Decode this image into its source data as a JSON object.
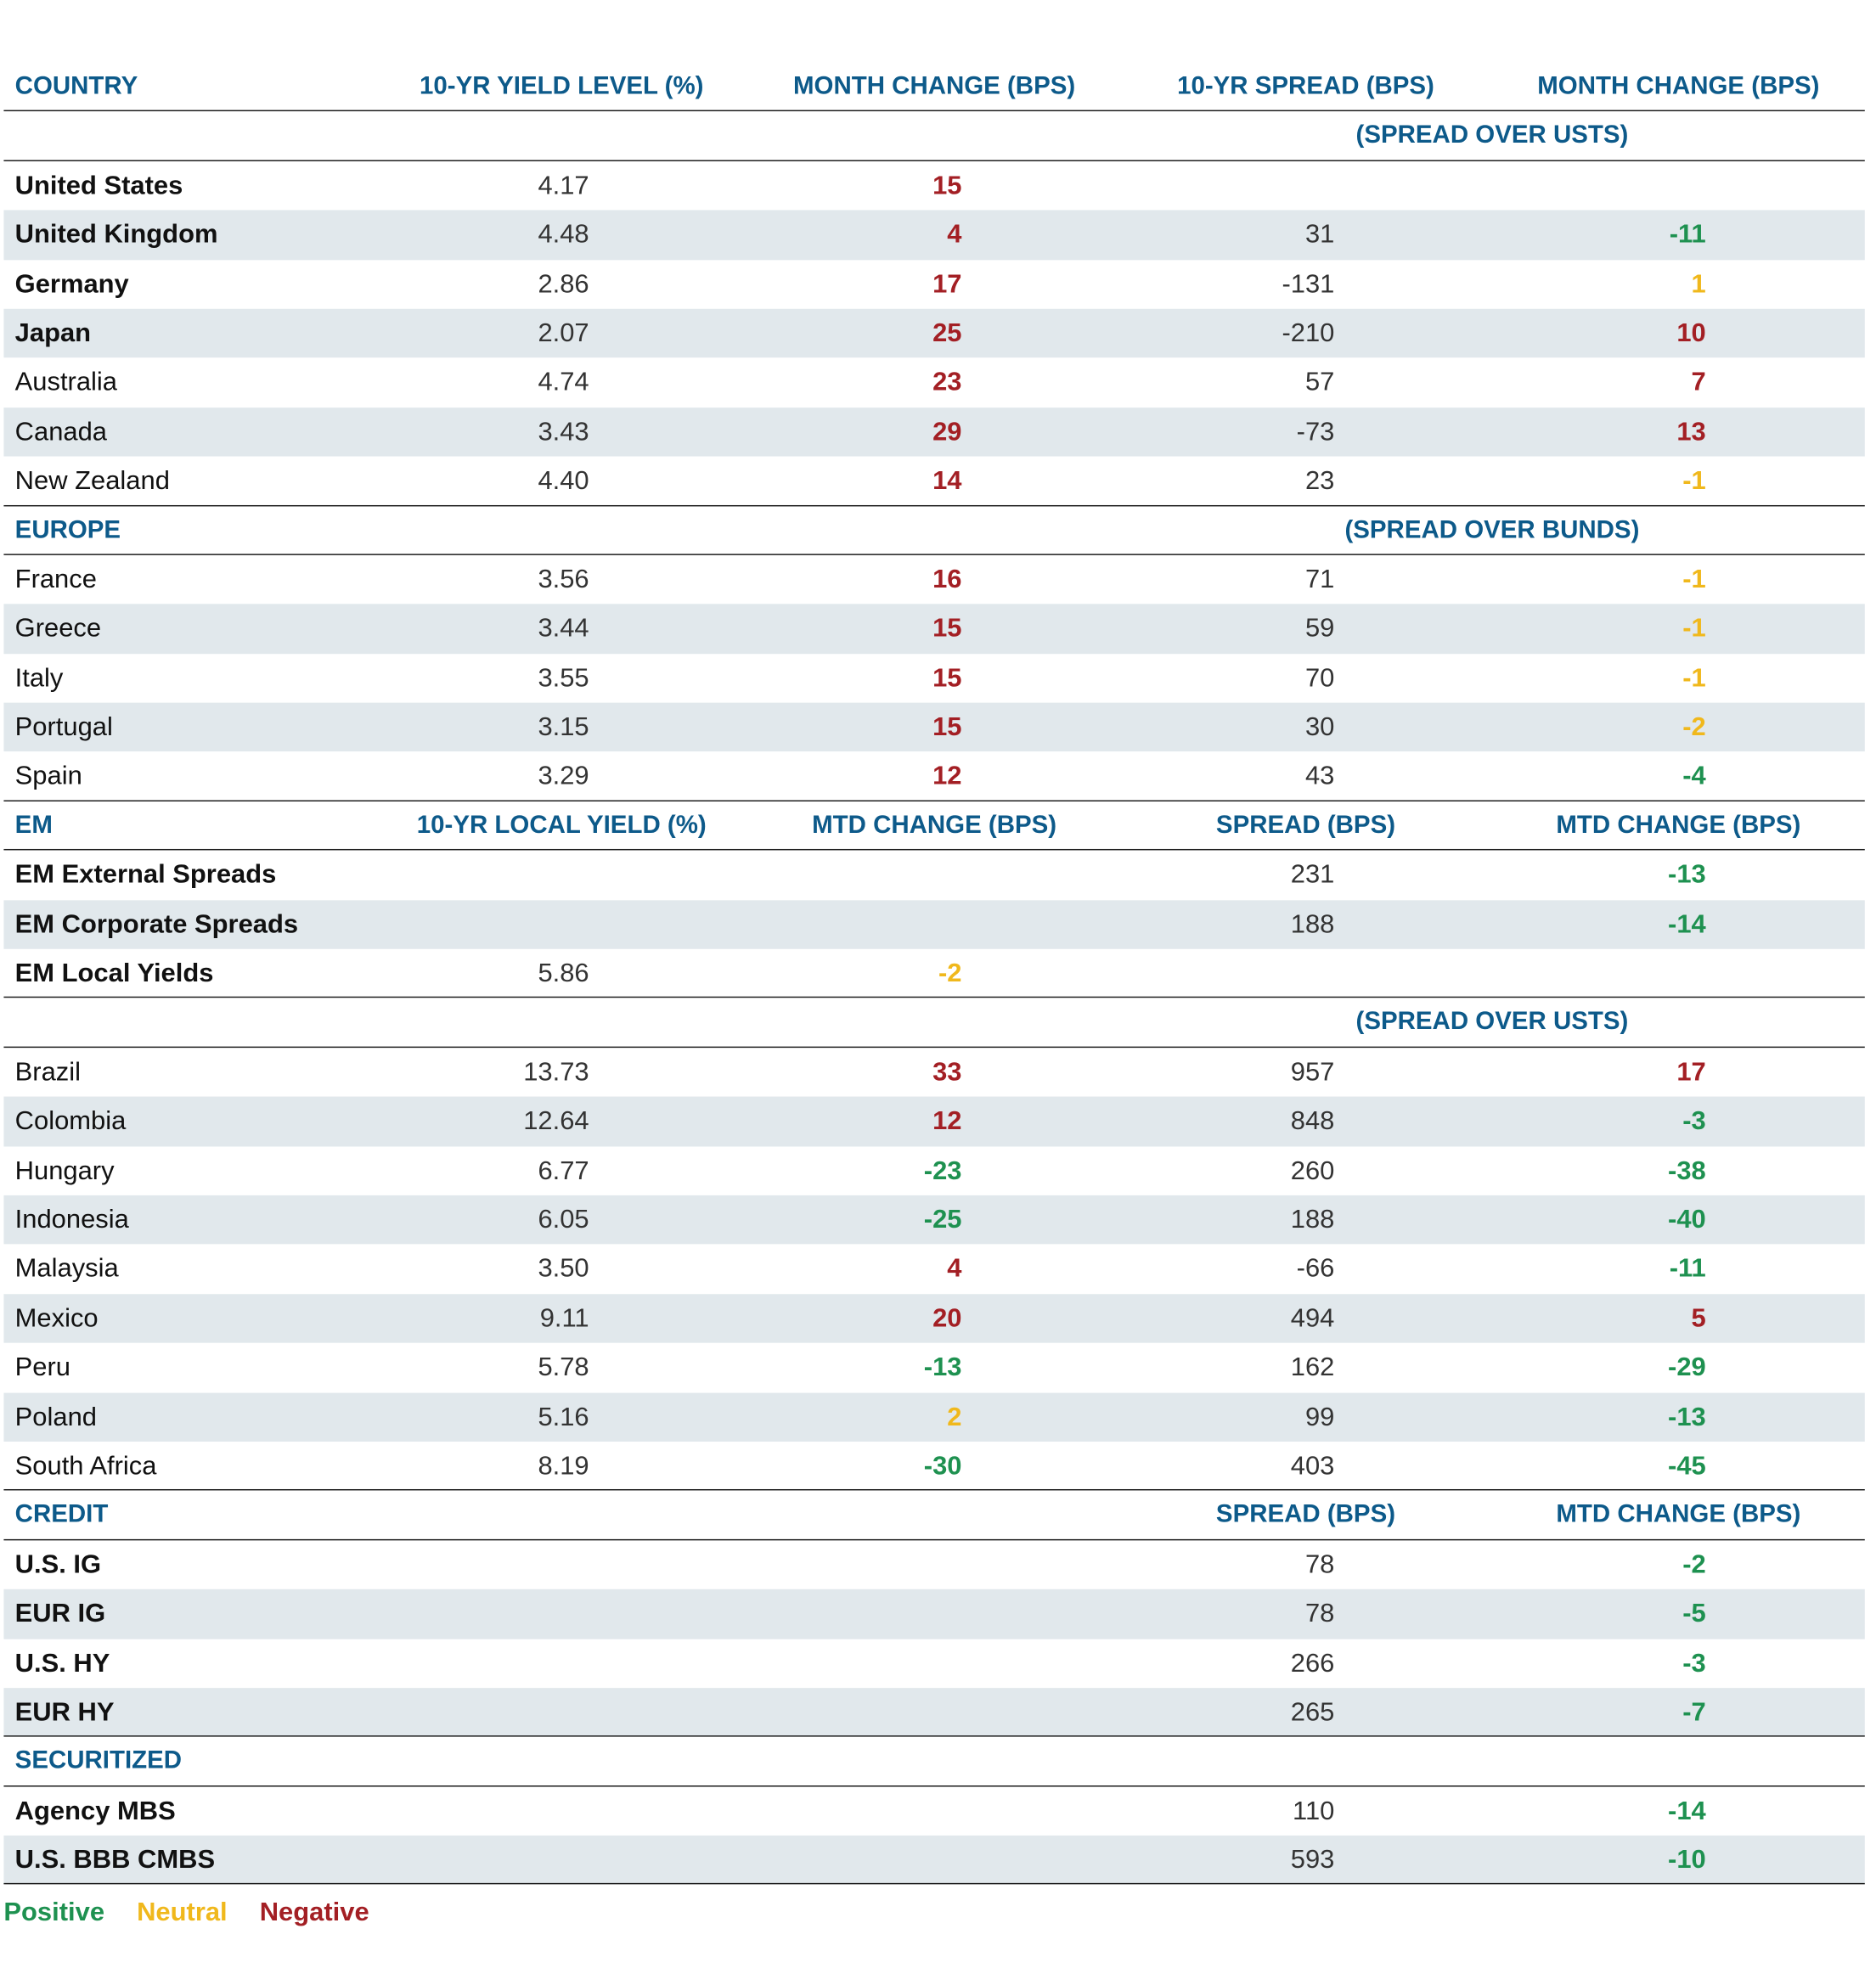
{
  "colors": {
    "header": "#0d5a8a",
    "positive": "#1e9150",
    "neutral": "#f0b81c",
    "negative": "#a31f24",
    "row_shade": "#e1e8ec"
  },
  "blocks": [
    {
      "type": "header",
      "cols": [
        "COUNTRY",
        "10-YR YIELD LEVEL (%)",
        "MONTH CHANGE (BPS)",
        "10-YR SPREAD (BPS)",
        "MONTH CHANGE (BPS)"
      ]
    },
    {
      "type": "subheader",
      "label": "",
      "spread_note": "(SPREAD OVER USTS)"
    },
    {
      "type": "rows",
      "rows": [
        {
          "name": "United States",
          "bold": true,
          "yield": "4.17",
          "yield_chg": {
            "v": "15",
            "s": "negative"
          },
          "spread": "",
          "spread_chg": null
        },
        {
          "name": "United Kingdom",
          "bold": true,
          "yield": "4.48",
          "yield_chg": {
            "v": "4",
            "s": "negative"
          },
          "spread": "31",
          "spread_chg": {
            "v": "-11",
            "s": "positive"
          }
        },
        {
          "name": "Germany",
          "bold": true,
          "yield": "2.86",
          "yield_chg": {
            "v": "17",
            "s": "negative"
          },
          "spread": "-131",
          "spread_chg": {
            "v": "1",
            "s": "neutral"
          }
        },
        {
          "name": "Japan",
          "bold": true,
          "yield": "2.07",
          "yield_chg": {
            "v": "25",
            "s": "negative"
          },
          "spread": "-210",
          "spread_chg": {
            "v": "10",
            "s": "negative"
          }
        },
        {
          "name": "Australia",
          "bold": false,
          "yield": "4.74",
          "yield_chg": {
            "v": "23",
            "s": "negative"
          },
          "spread": "57",
          "spread_chg": {
            "v": "7",
            "s": "negative"
          }
        },
        {
          "name": "Canada",
          "bold": false,
          "yield": "3.43",
          "yield_chg": {
            "v": "29",
            "s": "negative"
          },
          "spread": "-73",
          "spread_chg": {
            "v": "13",
            "s": "negative"
          }
        },
        {
          "name": "New Zealand",
          "bold": false,
          "yield": "4.40",
          "yield_chg": {
            "v": "14",
            "s": "negative"
          },
          "spread": "23",
          "spread_chg": {
            "v": "-1",
            "s": "neutral"
          }
        }
      ]
    },
    {
      "type": "subheader",
      "label": "EUROPE",
      "spread_note": "(SPREAD OVER BUNDS)"
    },
    {
      "type": "rows",
      "rows": [
        {
          "name": "France",
          "bold": false,
          "yield": "3.56",
          "yield_chg": {
            "v": "16",
            "s": "negative"
          },
          "spread": "71",
          "spread_chg": {
            "v": "-1",
            "s": "neutral"
          }
        },
        {
          "name": "Greece",
          "bold": false,
          "yield": "3.44",
          "yield_chg": {
            "v": "15",
            "s": "negative"
          },
          "spread": "59",
          "spread_chg": {
            "v": "-1",
            "s": "neutral"
          }
        },
        {
          "name": "Italy",
          "bold": false,
          "yield": "3.55",
          "yield_chg": {
            "v": "15",
            "s": "negative"
          },
          "spread": "70",
          "spread_chg": {
            "v": "-1",
            "s": "neutral"
          }
        },
        {
          "name": "Portugal",
          "bold": false,
          "yield": "3.15",
          "yield_chg": {
            "v": "15",
            "s": "negative"
          },
          "spread": "30",
          "spread_chg": {
            "v": "-2",
            "s": "neutral"
          }
        },
        {
          "name": "Spain",
          "bold": false,
          "yield": "3.29",
          "yield_chg": {
            "v": "12",
            "s": "negative"
          },
          "spread": "43",
          "spread_chg": {
            "v": "-4",
            "s": "positive"
          }
        }
      ]
    },
    {
      "type": "header",
      "cols": [
        "EM",
        "10-YR LOCAL YIELD (%)",
        "MTD CHANGE (BPS)",
        "SPREAD (BPS)",
        "MTD CHANGE (BPS)"
      ]
    },
    {
      "type": "rows",
      "rows": [
        {
          "name": "EM External Spreads",
          "bold": true,
          "yield": "",
          "yield_chg": null,
          "spread": "231",
          "spread_chg": {
            "v": "-13",
            "s": "positive"
          }
        },
        {
          "name": "EM Corporate Spreads",
          "bold": true,
          "yield": "",
          "yield_chg": null,
          "spread": "188",
          "spread_chg": {
            "v": "-14",
            "s": "positive"
          }
        },
        {
          "name": "EM Local Yields",
          "bold": true,
          "yield": "5.86",
          "yield_chg": {
            "v": "-2",
            "s": "neutral"
          },
          "spread": "",
          "spread_chg": null
        }
      ]
    },
    {
      "type": "subheader",
      "label": "",
      "spread_note": "(SPREAD OVER USTS)"
    },
    {
      "type": "rows",
      "rows": [
        {
          "name": "Brazil",
          "bold": false,
          "yield": "13.73",
          "yield_chg": {
            "v": "33",
            "s": "negative"
          },
          "spread": "957",
          "spread_chg": {
            "v": "17",
            "s": "negative"
          }
        },
        {
          "name": "Colombia",
          "bold": false,
          "yield": "12.64",
          "yield_chg": {
            "v": "12",
            "s": "negative"
          },
          "spread": "848",
          "spread_chg": {
            "v": "-3",
            "s": "positive"
          }
        },
        {
          "name": "Hungary",
          "bold": false,
          "yield": "6.77",
          "yield_chg": {
            "v": "-23",
            "s": "positive"
          },
          "spread": "260",
          "spread_chg": {
            "v": "-38",
            "s": "positive"
          }
        },
        {
          "name": "Indonesia",
          "bold": false,
          "yield": "6.05",
          "yield_chg": {
            "v": "-25",
            "s": "positive"
          },
          "spread": "188",
          "spread_chg": {
            "v": "-40",
            "s": "positive"
          }
        },
        {
          "name": "Malaysia",
          "bold": false,
          "yield": "3.50",
          "yield_chg": {
            "v": "4",
            "s": "negative"
          },
          "spread": "-66",
          "spread_chg": {
            "v": "-11",
            "s": "positive"
          }
        },
        {
          "name": "Mexico",
          "bold": false,
          "yield": "9.11",
          "yield_chg": {
            "v": "20",
            "s": "negative"
          },
          "spread": "494",
          "spread_chg": {
            "v": "5",
            "s": "negative"
          }
        },
        {
          "name": "Peru",
          "bold": false,
          "yield": "5.78",
          "yield_chg": {
            "v": "-13",
            "s": "positive"
          },
          "spread": "162",
          "spread_chg": {
            "v": "-29",
            "s": "positive"
          }
        },
        {
          "name": "Poland",
          "bold": false,
          "yield": "5.16",
          "yield_chg": {
            "v": "2",
            "s": "neutral"
          },
          "spread": "99",
          "spread_chg": {
            "v": "-13",
            "s": "positive"
          }
        },
        {
          "name": "South Africa",
          "bold": false,
          "yield": "8.19",
          "yield_chg": {
            "v": "-30",
            "s": "positive"
          },
          "spread": "403",
          "spread_chg": {
            "v": "-45",
            "s": "positive"
          }
        }
      ]
    },
    {
      "type": "header",
      "cols": [
        "CREDIT",
        "",
        "",
        "SPREAD (BPS)",
        "MTD CHANGE (BPS)"
      ]
    },
    {
      "type": "rows",
      "rows": [
        {
          "name": "U.S. IG",
          "bold": true,
          "yield": "",
          "yield_chg": null,
          "spread": "78",
          "spread_chg": {
            "v": "-2",
            "s": "positive"
          }
        },
        {
          "name": "EUR IG",
          "bold": true,
          "yield": "",
          "yield_chg": null,
          "spread": "78",
          "spread_chg": {
            "v": "-5",
            "s": "positive"
          }
        },
        {
          "name": "U.S. HY",
          "bold": true,
          "yield": "",
          "yield_chg": null,
          "spread": "266",
          "spread_chg": {
            "v": "-3",
            "s": "positive"
          }
        },
        {
          "name": "EUR HY",
          "bold": true,
          "yield": "",
          "yield_chg": null,
          "spread": "265",
          "spread_chg": {
            "v": "-7",
            "s": "positive"
          }
        }
      ]
    },
    {
      "type": "header",
      "cols": [
        "SECURITIZED",
        "",
        "",
        "",
        ""
      ]
    },
    {
      "type": "rows",
      "rows": [
        {
          "name": "Agency MBS",
          "bold": true,
          "yield": "",
          "yield_chg": null,
          "spread": "110",
          "spread_chg": {
            "v": "-14",
            "s": "positive"
          }
        },
        {
          "name": "U.S. BBB CMBS",
          "bold": true,
          "yield": "",
          "yield_chg": null,
          "spread": "593",
          "spread_chg": {
            "v": "-10",
            "s": "positive"
          }
        }
      ]
    }
  ],
  "legend": {
    "positive": "Positive",
    "neutral": "Neutral",
    "negative": "Negative"
  }
}
